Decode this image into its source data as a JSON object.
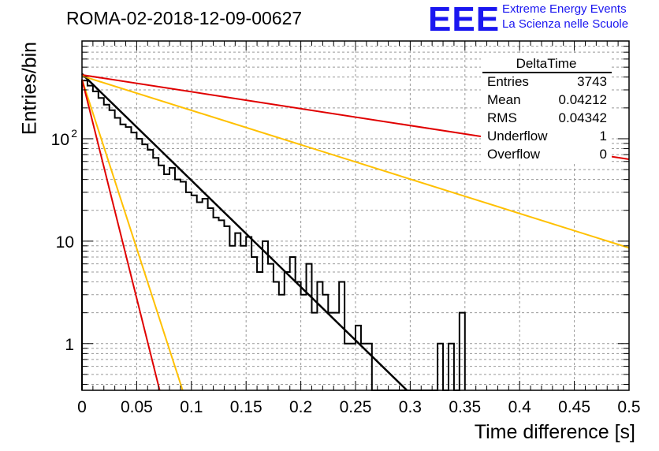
{
  "title": "ROMA-02-2018-12-09-00627",
  "logo": {
    "text": "EEE",
    "line1": "Extreme Energy Events",
    "line2": "La Scienza nelle Scuole",
    "color": "#1a16f0"
  },
  "stats": {
    "title": "DeltaTime",
    "rows": [
      {
        "label": "Entries",
        "value": "3743"
      },
      {
        "label": "Mean",
        "value": "0.04212"
      },
      {
        "label": "RMS",
        "value": "0.04342"
      },
      {
        "label": "Underflow",
        "value": "1"
      },
      {
        "label": "Overflow",
        "value": "0"
      }
    ]
  },
  "chart_data": {
    "type": "bar",
    "style": "step-histogram",
    "title": "ROMA-02-2018-12-09-00627",
    "xlabel": "Time difference [s]",
    "ylabel": "Entries/bin",
    "xlim": [
      0,
      0.5
    ],
    "ylim": [
      0.35,
      900
    ],
    "yscale": "log",
    "grid": true,
    "xticks": [
      0,
      0.05,
      0.1,
      0.15,
      0.2,
      0.25,
      0.3,
      0.35,
      0.4,
      0.45,
      0.5
    ],
    "xtick_labels": [
      "0",
      "0.05",
      "0.1",
      "0.15",
      "0.2",
      "0.25",
      "0.3",
      "0.35",
      "0.4",
      "0.45",
      "0.5"
    ],
    "yticks": [
      1,
      10,
      100
    ],
    "ytick_labels": [
      "1",
      "10",
      "10^2"
    ],
    "bin_width": 0.005,
    "histogram": [
      370,
      330,
      290,
      250,
      215,
      190,
      160,
      138,
      130,
      115,
      100,
      88,
      78,
      65,
      55,
      45,
      52,
      40,
      38,
      30,
      28,
      24,
      26,
      21,
      17,
      16,
      14,
      9,
      12,
      9,
      11,
      7,
      5,
      10,
      6,
      4,
      3,
      5,
      7,
      4,
      3,
      6,
      2,
      4,
      3,
      2,
      2,
      4,
      1,
      1,
      1.5,
      1,
      1,
      0.1,
      0.1,
      0.1,
      0.1,
      0.1,
      0.1,
      0.1,
      0.1,
      0.1,
      0.1,
      0.1,
      0.1,
      1,
      0.1,
      1,
      0.1,
      2
    ],
    "fit_lines": [
      {
        "color": "#000000",
        "points": [
          [
            0,
            430
          ],
          [
            0.297,
            0.35
          ]
        ]
      },
      {
        "color": "#e00000",
        "points": [
          [
            0,
            420
          ],
          [
            0.5,
            63
          ]
        ]
      },
      {
        "color": "#ffc000",
        "points": [
          [
            0,
            410
          ],
          [
            0.5,
            8.6
          ]
        ]
      },
      {
        "color": "#ffc000",
        "points": [
          [
            0,
            380
          ],
          [
            0.092,
            0.35
          ]
        ]
      },
      {
        "color": "#e00000",
        "points": [
          [
            0,
            380
          ],
          [
            0.071,
            0.35
          ]
        ]
      }
    ]
  }
}
